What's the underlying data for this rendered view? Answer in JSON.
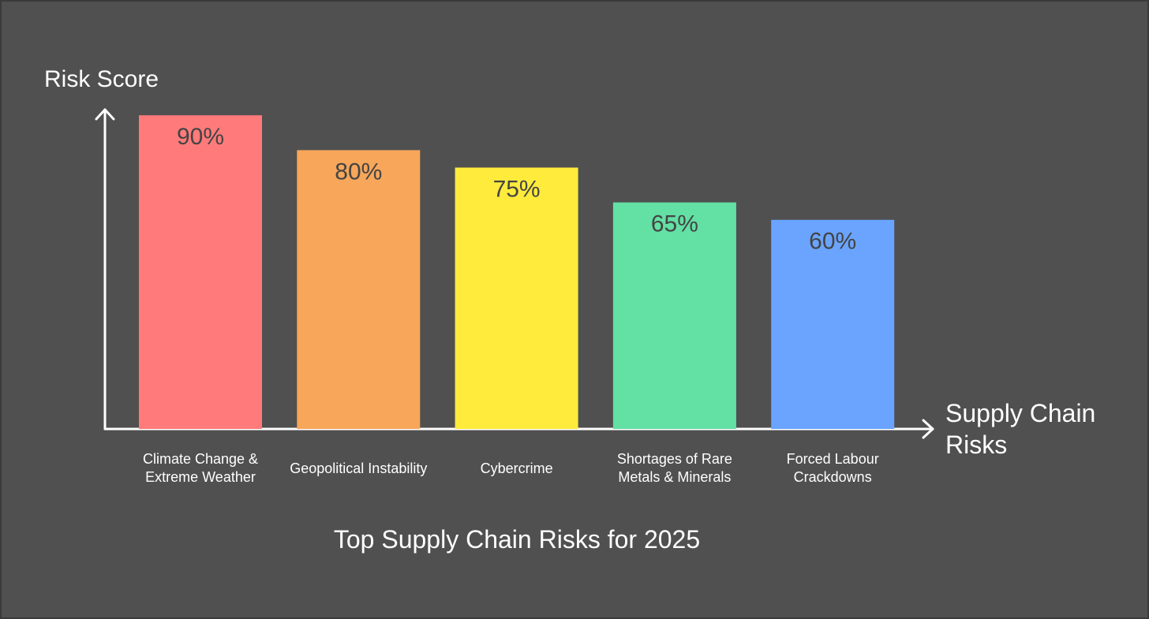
{
  "chart_data": {
    "type": "bar",
    "title": "Top Supply Chain Risks for 2025",
    "y_label": "Risk Score",
    "x_label": "Supply Chain Risks",
    "categories": [
      "Climate Change & Extreme Weather",
      "Geopolitical Instability",
      "Cybercrime",
      "Shortages of Rare Metals & Minerals",
      "Forced Labour Crackdowns"
    ],
    "values": [
      90,
      80,
      75,
      65,
      60
    ],
    "value_labels": [
      "90%",
      "80%",
      "75%",
      "65%",
      "60%"
    ],
    "colors": [
      "#ff7b7b",
      "#f7a65a",
      "#ffeb3b",
      "#63e0a4",
      "#6aa4ff"
    ],
    "ylim": [
      0,
      100
    ]
  }
}
